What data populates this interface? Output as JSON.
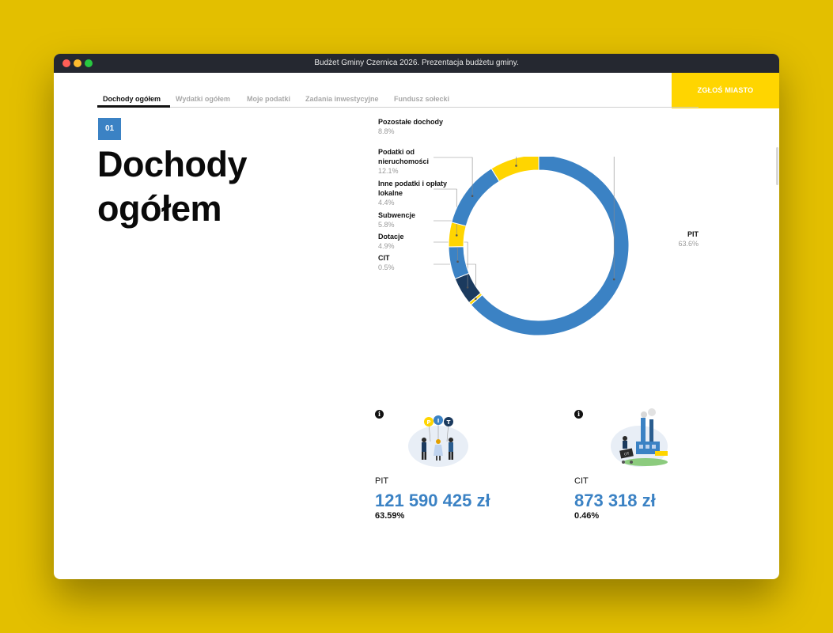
{
  "window": {
    "title": "Budżet Gminy Czernica 2026. Prezentacja budżetu gminy."
  },
  "header": {
    "report_button": "ZGŁOŚ MIASTO"
  },
  "tabs": [
    {
      "label": "Dochody ogółem"
    },
    {
      "label": "Wydatki ogółem"
    },
    {
      "label": "Moje podatki"
    },
    {
      "label": "Zadania inwestycyjne"
    },
    {
      "label": "Fundusz sołecki"
    }
  ],
  "section": {
    "number": "01",
    "title": "Dochody ogółem"
  },
  "chart_data": {
    "type": "pie",
    "series": [
      {
        "name": "PIT",
        "value": 63.6,
        "label": "63.6%",
        "color": "#3B82C4"
      },
      {
        "name": "CIT",
        "value": 0.5,
        "label": "0.5%",
        "color": "#FFD500"
      },
      {
        "name": "Dotacje",
        "value": 4.9,
        "label": "4.9%",
        "color": "#1B3A5E"
      },
      {
        "name": "Subwencje",
        "value": 5.8,
        "label": "5.8%",
        "color": "#3B82C4"
      },
      {
        "name": "Inne podatki i opłaty lokalne",
        "value": 4.4,
        "label": "4.4%",
        "color": "#FFD500"
      },
      {
        "name": "Podatki od nieruchomości",
        "value": 12.1,
        "label": "12.1%",
        "color": "#3B82C4"
      },
      {
        "name": "Pozostałe dochody",
        "value": 8.8,
        "label": "8.8%",
        "color": "#FFD500"
      }
    ]
  },
  "cards": [
    {
      "name": "PIT",
      "amount": "121 590 425 zł",
      "percent": "63.59%"
    },
    {
      "name": "CIT",
      "amount": "873 318 zł",
      "percent": "0.46%"
    }
  ]
}
